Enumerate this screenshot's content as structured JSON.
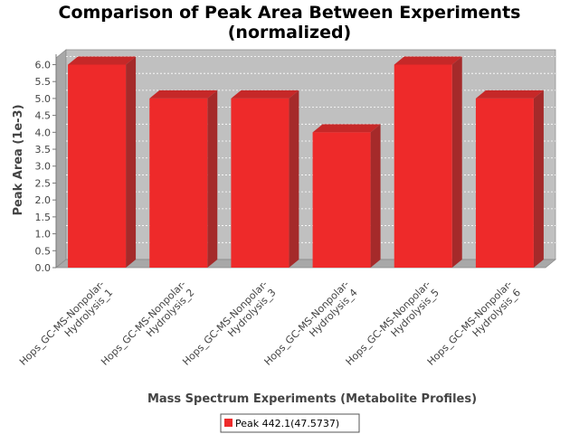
{
  "chart_data": {
    "type": "bar",
    "title": [
      "Comparison of Peak Area Between Experiments",
      "(normalized)"
    ],
    "xlabel": "Mass Spectrum Experiments (Metabolite Profiles)",
    "ylabel": "Peak Area (1e-3)",
    "categories": [
      [
        "Hops_GC-MS-Nonpolar-",
        "Hydrolysis_1"
      ],
      [
        "Hops_GC-MS-Nonpolar-",
        "Hydrolysis_2"
      ],
      [
        "Hops_GC-MS-Nonpolar-",
        "Hydrolysis_3"
      ],
      [
        "Hops_GC-MS-Nonpolar-",
        "Hydrolysis_4"
      ],
      [
        "Hops_GC-MS-Nonpolar-",
        "Hydrolysis_5"
      ],
      [
        "Hops_GC-MS-Nonpolar-",
        "Hydrolysis_6"
      ]
    ],
    "series": [
      {
        "name": "Peak 442.1(47.5737)",
        "values": [
          6.0,
          5.0,
          5.0,
          4.0,
          6.0,
          5.0
        ],
        "color": "#ee2a2a"
      }
    ],
    "ylim": [
      0,
      6.2
    ],
    "yticks": [
      "0.0",
      "0.5",
      "1.0",
      "1.5",
      "2.0",
      "2.5",
      "3.0",
      "3.5",
      "4.0",
      "4.5",
      "5.0",
      "5.5",
      "6.0"
    ],
    "grid": true,
    "legend_position": "bottom",
    "style": "3d",
    "plot_background": "#c0c0c0"
  }
}
